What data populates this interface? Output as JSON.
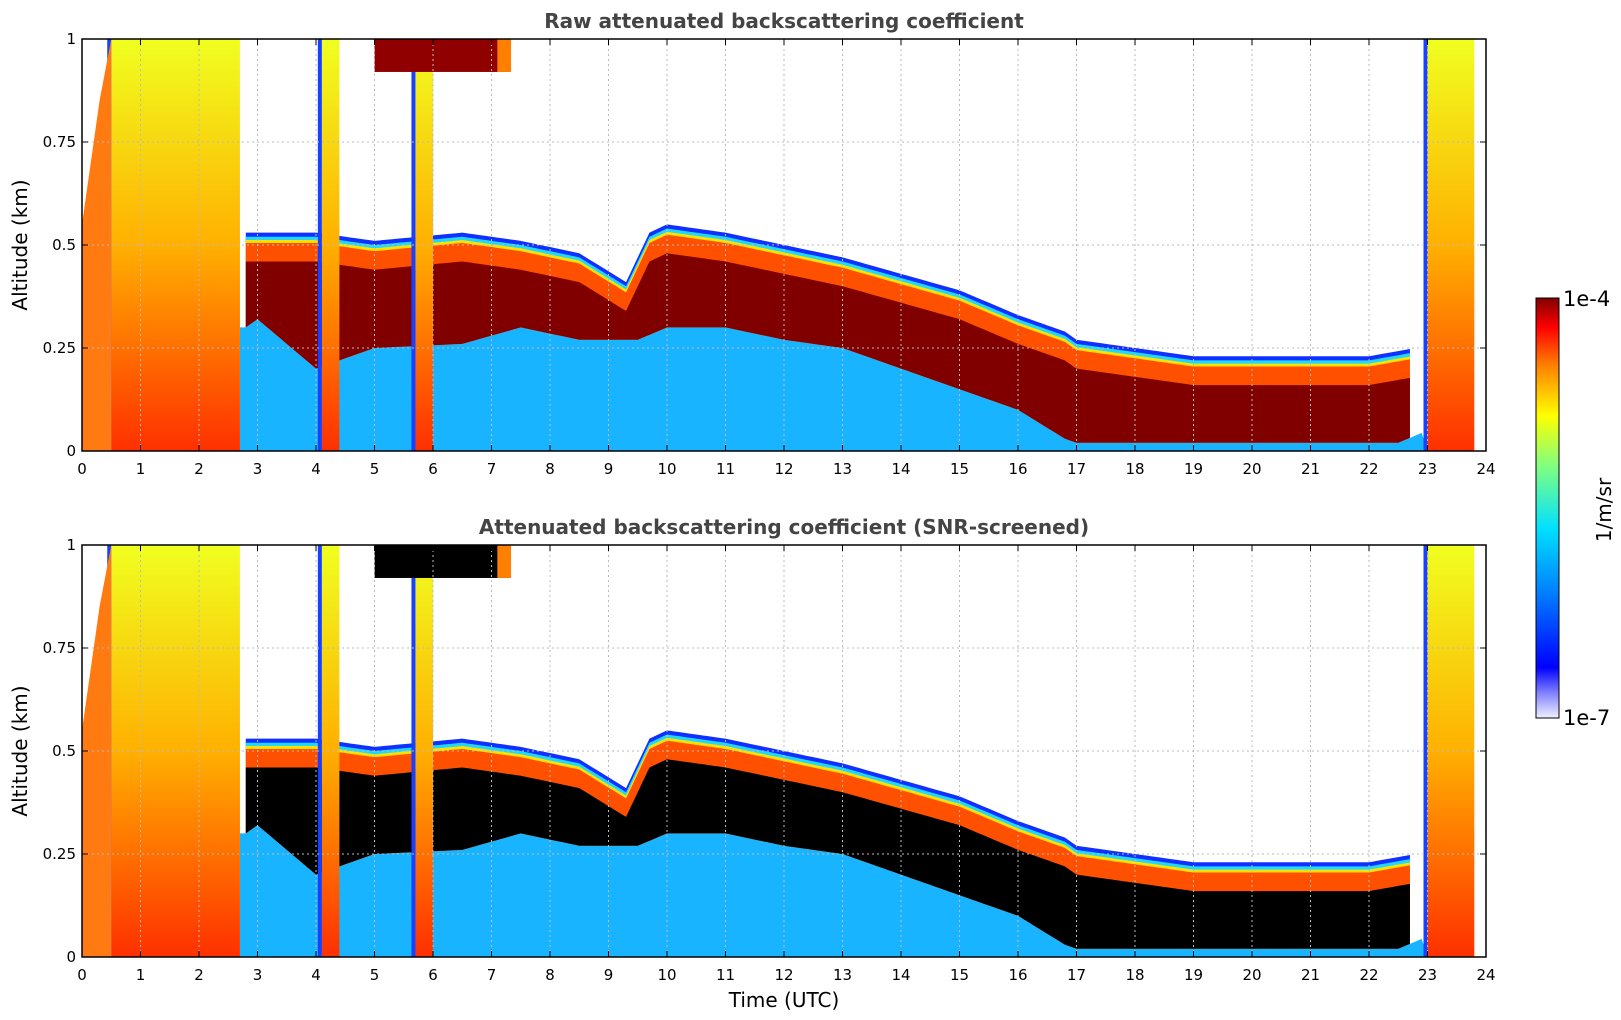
{
  "figure": {
    "xlabel": "Time (UTC)",
    "ylabel": "Altitude (km)"
  },
  "colorbar": {
    "label": "1/m/sr",
    "max_label": "1e-4",
    "min_label": "1e-7",
    "scale": "log",
    "colormap": "jet (white at minimum)"
  },
  "chart_data": [
    {
      "type": "heatmap",
      "title": "Raw attenuated backscattering coefficient",
      "xlabel": "",
      "ylabel": "Altitude (km)",
      "xlim": [
        0,
        24
      ],
      "ylim": [
        0,
        1
      ],
      "x_ticks": [
        "0",
        "1",
        "2",
        "3",
        "4",
        "5",
        "6",
        "7",
        "8",
        "9",
        "10",
        "11",
        "12",
        "13",
        "14",
        "15",
        "16",
        "17",
        "18",
        "19",
        "20",
        "21",
        "22",
        "23",
        "24"
      ],
      "y_ticks": [
        "0",
        "0.25",
        "0.5",
        "0.75",
        "1"
      ],
      "grid": true,
      "x_unit": "hour (UTC)",
      "cloud_base_km": [
        [
          2.8,
          0.3
        ],
        [
          3.0,
          0.32
        ],
        [
          4.0,
          0.2
        ],
        [
          5.0,
          0.25
        ],
        [
          6.5,
          0.26
        ],
        [
          7.5,
          0.3
        ],
        [
          8.5,
          0.27
        ],
        [
          9.5,
          0.27
        ],
        [
          10.0,
          0.3
        ],
        [
          11.0,
          0.3
        ],
        [
          12.0,
          0.27
        ],
        [
          13.0,
          0.25
        ],
        [
          14.0,
          0.2
        ],
        [
          15.0,
          0.15
        ],
        [
          16.0,
          0.1
        ],
        [
          16.8,
          0.03
        ],
        [
          17.0,
          0.02
        ],
        [
          20.0,
          0.02
        ],
        [
          22.5,
          0.02
        ],
        [
          23.0,
          0.05
        ]
      ],
      "cloud_top_km": [
        [
          2.8,
          0.5
        ],
        [
          4.0,
          0.5
        ],
        [
          5.0,
          0.48
        ],
        [
          6.5,
          0.5
        ],
        [
          7.5,
          0.48
        ],
        [
          8.5,
          0.45
        ],
        [
          9.3,
          0.38
        ],
        [
          9.7,
          0.5
        ],
        [
          10.0,
          0.52
        ],
        [
          11.0,
          0.5
        ],
        [
          12.0,
          0.47
        ],
        [
          13.0,
          0.44
        ],
        [
          14.0,
          0.4
        ],
        [
          15.0,
          0.36
        ],
        [
          16.0,
          0.3
        ],
        [
          16.8,
          0.26
        ],
        [
          17.0,
          0.24
        ],
        [
          18.0,
          0.22
        ],
        [
          19.0,
          0.2
        ],
        [
          20.0,
          0.2
        ],
        [
          21.0,
          0.2
        ],
        [
          22.0,
          0.2
        ],
        [
          22.8,
          0.22
        ]
      ],
      "high_signal_columns_hours": [
        [
          0.5,
          2.7
        ],
        [
          4.1,
          4.4
        ],
        [
          5.7,
          6.0
        ],
        [
          23.0,
          23.8
        ]
      ],
      "upper_cloud_patch": {
        "t_start": 5.0,
        "t_end": 7.3,
        "alt_start_km": 0.92,
        "alt_end_km": 1.0
      }
    },
    {
      "type": "heatmap",
      "title": "Attenuated backscattering coefficient (SNR-screened)",
      "xlabel": "Time (UTC)",
      "ylabel": "Altitude (km)",
      "xlim": [
        0,
        24
      ],
      "ylim": [
        0,
        1
      ],
      "x_ticks": [
        "0",
        "1",
        "2",
        "3",
        "4",
        "5",
        "6",
        "7",
        "8",
        "9",
        "10",
        "11",
        "12",
        "13",
        "14",
        "15",
        "16",
        "17",
        "18",
        "19",
        "20",
        "21",
        "22",
        "23",
        "24"
      ],
      "y_ticks": [
        "0",
        "0.25",
        "0.5",
        "0.75",
        "1"
      ],
      "grid": true,
      "x_unit": "hour (UTC)",
      "screened_fill": "black",
      "cloud_base_km": [
        [
          2.8,
          0.3
        ],
        [
          3.0,
          0.32
        ],
        [
          4.0,
          0.2
        ],
        [
          5.0,
          0.25
        ],
        [
          6.5,
          0.26
        ],
        [
          7.5,
          0.3
        ],
        [
          8.5,
          0.27
        ],
        [
          9.5,
          0.27
        ],
        [
          10.0,
          0.3
        ],
        [
          11.0,
          0.3
        ],
        [
          12.0,
          0.27
        ],
        [
          13.0,
          0.25
        ],
        [
          14.0,
          0.2
        ],
        [
          15.0,
          0.15
        ],
        [
          16.0,
          0.1
        ],
        [
          16.8,
          0.03
        ],
        [
          17.0,
          0.02
        ],
        [
          20.0,
          0.02
        ],
        [
          22.5,
          0.02
        ],
        [
          23.0,
          0.05
        ]
      ],
      "cloud_top_km": [
        [
          2.8,
          0.5
        ],
        [
          4.0,
          0.5
        ],
        [
          5.0,
          0.48
        ],
        [
          6.5,
          0.5
        ],
        [
          7.5,
          0.48
        ],
        [
          8.5,
          0.45
        ],
        [
          9.3,
          0.38
        ],
        [
          9.7,
          0.5
        ],
        [
          10.0,
          0.52
        ],
        [
          11.0,
          0.5
        ],
        [
          12.0,
          0.47
        ],
        [
          13.0,
          0.44
        ],
        [
          14.0,
          0.4
        ],
        [
          15.0,
          0.36
        ],
        [
          16.0,
          0.3
        ],
        [
          16.8,
          0.26
        ],
        [
          17.0,
          0.24
        ],
        [
          18.0,
          0.22
        ],
        [
          19.0,
          0.2
        ],
        [
          20.0,
          0.2
        ],
        [
          21.0,
          0.2
        ],
        [
          22.0,
          0.2
        ],
        [
          22.8,
          0.22
        ]
      ],
      "high_signal_columns_hours": [
        [
          0.5,
          2.7
        ],
        [
          4.1,
          4.4
        ],
        [
          5.7,
          6.0
        ],
        [
          23.0,
          23.8
        ]
      ],
      "upper_cloud_patch": {
        "t_start": 5.0,
        "t_end": 7.3,
        "alt_start_km": 0.92,
        "alt_end_km": 1.0
      }
    }
  ]
}
